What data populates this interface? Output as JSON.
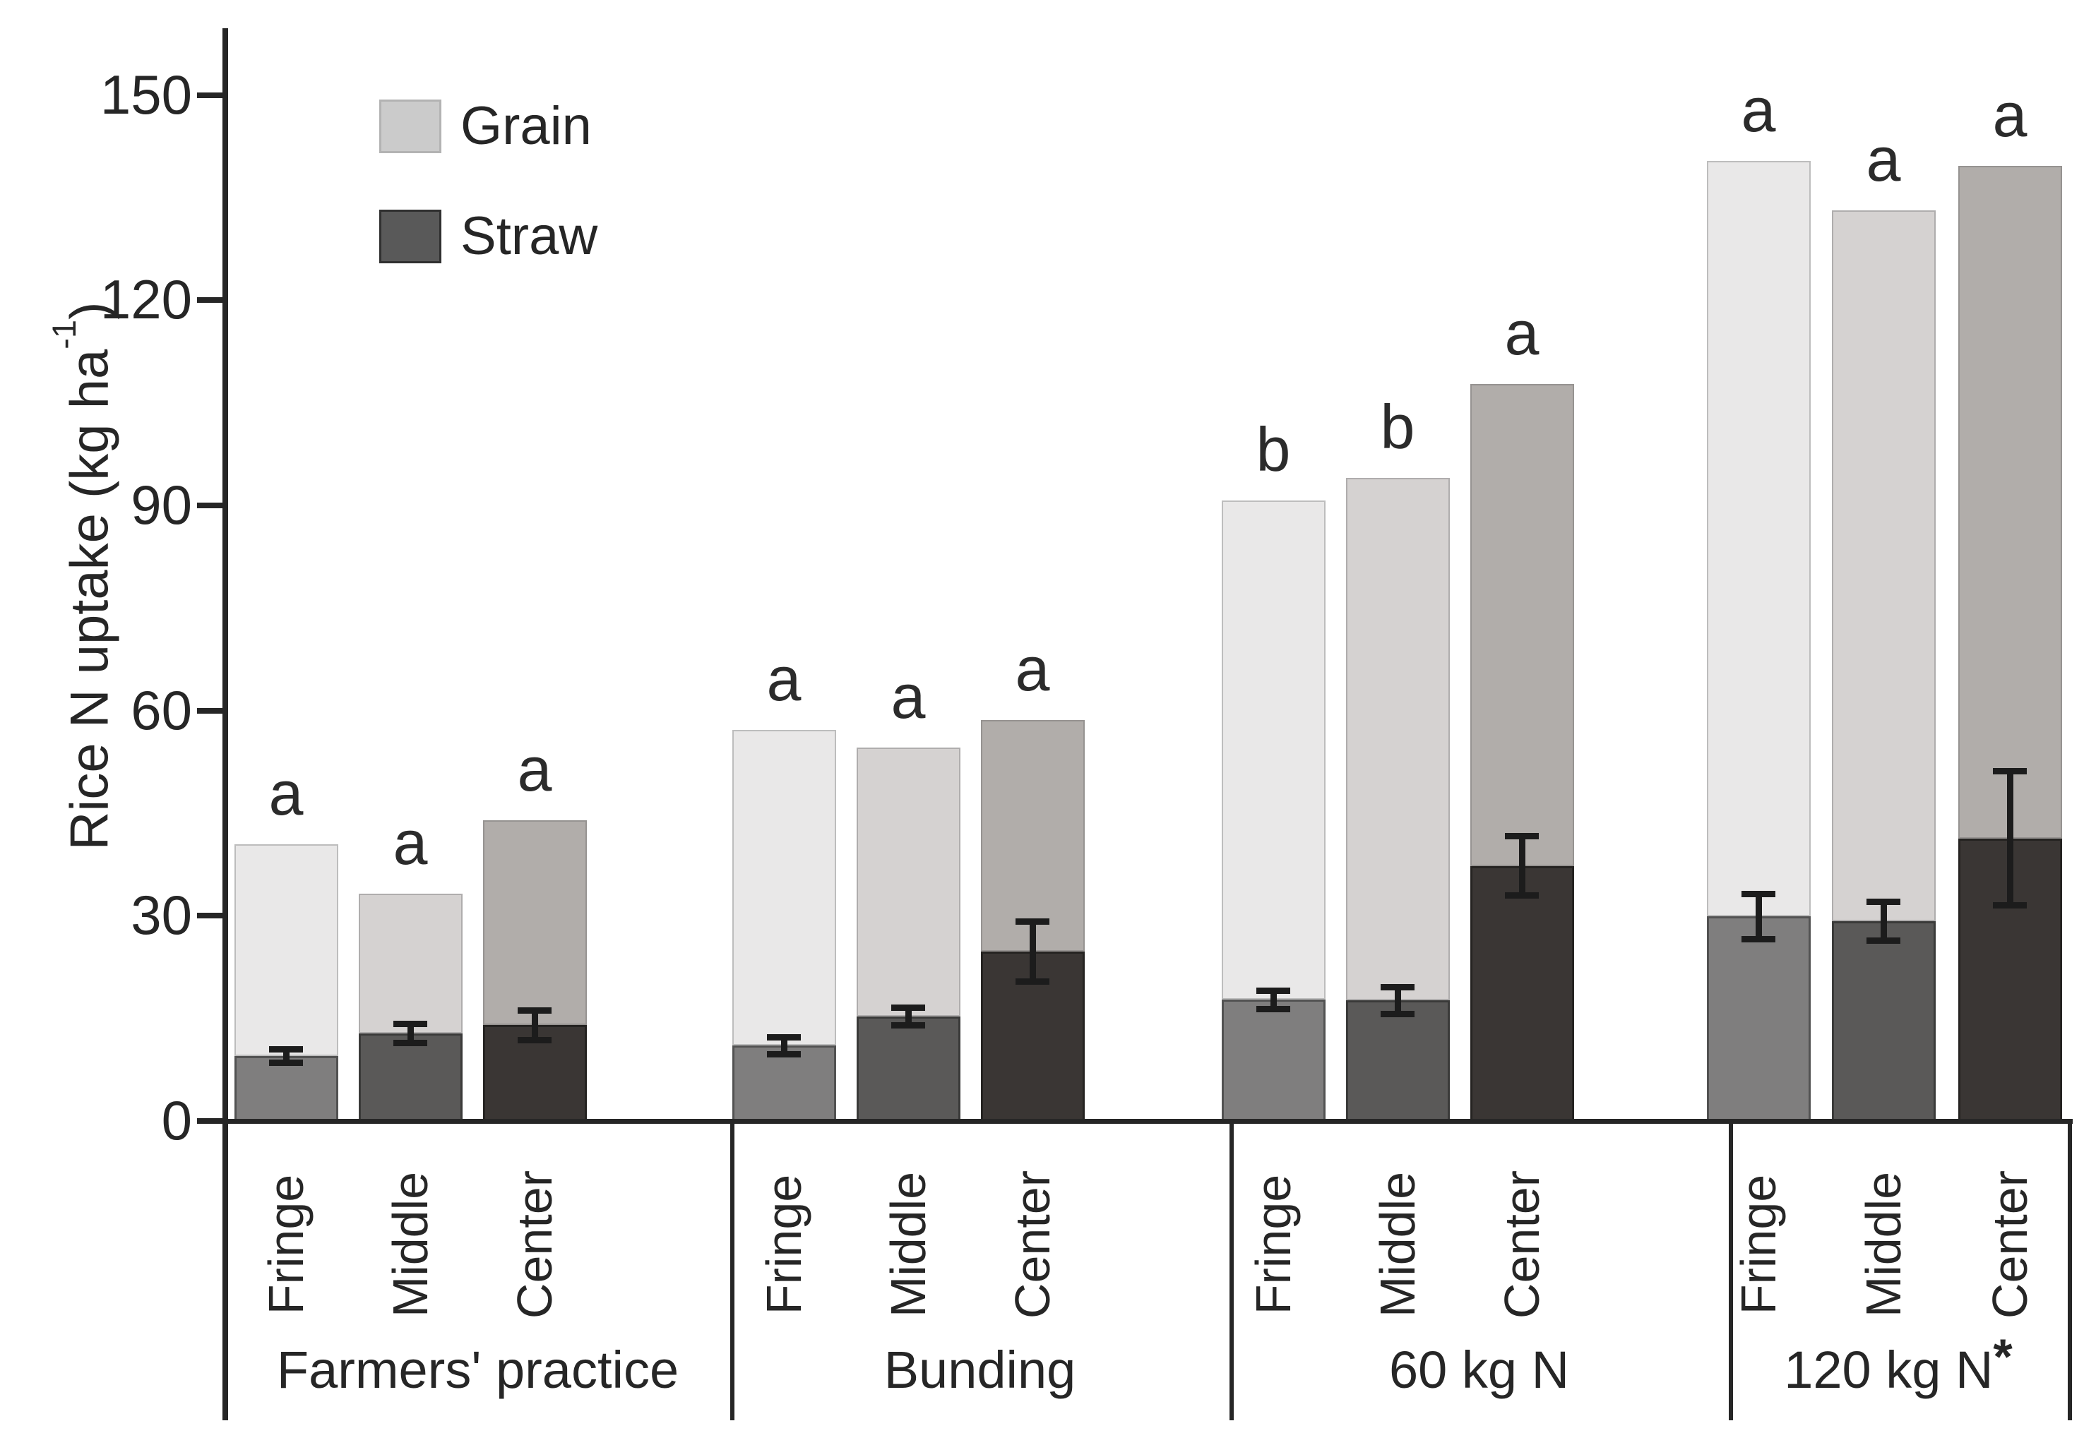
{
  "chart_data": {
    "type": "bar",
    "stacked": true,
    "ylabel": {
      "text": "Rice N uptake (kg ha",
      "sup": "-1",
      "suffix": ")"
    },
    "ylim": [
      0,
      150
    ],
    "yticks": [
      0,
      30,
      60,
      90,
      120,
      150
    ],
    "grid": false,
    "legend_position": "top-left",
    "legend": [
      {
        "label": "Grain",
        "color": "#cbcbcb",
        "border": "#b3b3b3"
      },
      {
        "label": "Straw",
        "color": "#595959",
        "border": "#303030"
      }
    ],
    "series_note": "stacked segments: straw (bottom, dark) + grain (top, light); error bars on straw boundary; significance letters above bar totals",
    "groups": [
      {
        "label": "Farmers' practice",
        "label_suffix": "",
        "bars": [
          {
            "position": "Fringe",
            "straw": 9.5,
            "grain": 31.0,
            "error": 1.0,
            "letter": "a",
            "colors": {
              "straw": "#7f7e7e",
              "grain": "#e9e8e8"
            }
          },
          {
            "position": "Middle",
            "straw": 12.8,
            "grain": 20.4,
            "error": 1.4,
            "letter": "a",
            "colors": {
              "straw": "#5a5958",
              "grain": "#d5d2d1"
            }
          },
          {
            "position": "Center",
            "straw": 14.0,
            "grain": 30.0,
            "error": 2.2,
            "letter": "a",
            "colors": {
              "straw": "#3a3634",
              "grain": "#b1adaa"
            }
          }
        ]
      },
      {
        "label": "Bunding",
        "label_suffix": "",
        "bars": [
          {
            "position": "Fringe",
            "straw": 11.0,
            "grain": 46.2,
            "error": 1.2,
            "letter": "a",
            "colors": {
              "straw": "#7f7e7e",
              "grain": "#e9e8e8"
            }
          },
          {
            "position": "Middle",
            "straw": 15.3,
            "grain": 39.3,
            "error": 1.3,
            "letter": "a",
            "colors": {
              "straw": "#5a5958",
              "grain": "#d5d2d1"
            }
          },
          {
            "position": "Center",
            "straw": 24.8,
            "grain": 33.8,
            "error": 4.4,
            "letter": "a",
            "colors": {
              "straw": "#3a3634",
              "grain": "#b1adaa"
            }
          }
        ]
      },
      {
        "label": "60 kg N",
        "label_suffix": "",
        "bars": [
          {
            "position": "Fringe",
            "straw": 17.7,
            "grain": 73.0,
            "error": 1.3,
            "letter": "b",
            "colors": {
              "straw": "#7f7e7e",
              "grain": "#e9e8e8"
            }
          },
          {
            "position": "Middle",
            "straw": 17.6,
            "grain": 76.4,
            "error": 2.0,
            "letter": "b",
            "colors": {
              "straw": "#5a5958",
              "grain": "#d5d2d1"
            }
          },
          {
            "position": "Center",
            "straw": 37.3,
            "grain": 70.4,
            "error": 4.3,
            "letter": "a",
            "colors": {
              "straw": "#3a3634",
              "grain": "#b1adaa"
            }
          }
        ]
      },
      {
        "label": "120 kg N",
        "label_suffix": "*",
        "bars": [
          {
            "position": "Fringe",
            "straw": 29.9,
            "grain": 110.5,
            "error": 3.3,
            "letter": "a",
            "colors": {
              "straw": "#7f7e7e",
              "grain": "#e9e8e8"
            }
          },
          {
            "position": "Middle",
            "straw": 29.2,
            "grain": 103.9,
            "error": 2.8,
            "letter": "a",
            "colors": {
              "straw": "#5a5958",
              "grain": "#d5d2d1"
            }
          },
          {
            "position": "Center",
            "straw": 41.3,
            "grain": 98.3,
            "error": 9.8,
            "letter": "a",
            "colors": {
              "straw": "#3a3634",
              "grain": "#b1adaa"
            }
          }
        ]
      }
    ],
    "axis_color": "#262626"
  }
}
